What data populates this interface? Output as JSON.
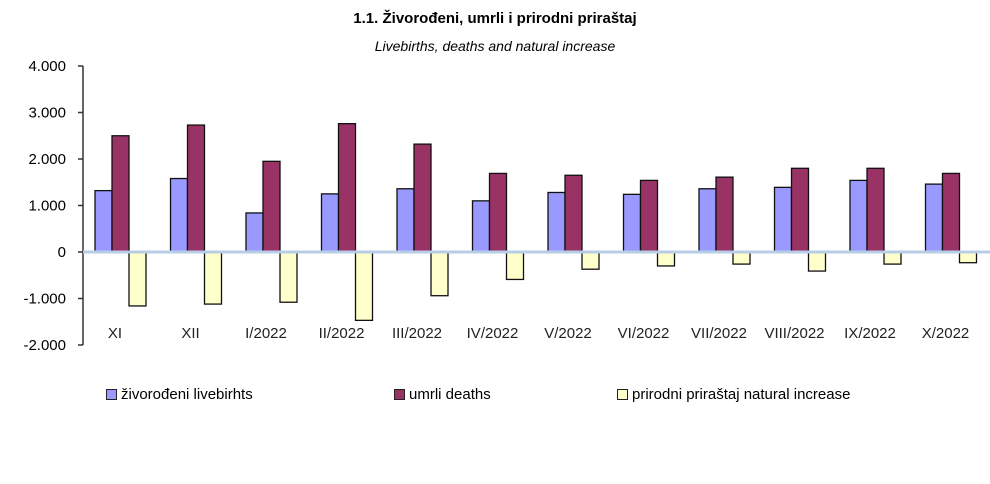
{
  "chart_data": {
    "type": "bar",
    "title": "1.1. Živorođeni, umrli  i prirodni priraštaj",
    "subtitle": "Livebirths, deaths and natural increase",
    "xlabel": "",
    "ylabel": "",
    "ylim": [
      -2000,
      4000
    ],
    "yticks": [
      4000,
      3000,
      2000,
      1000,
      0,
      -1000,
      -2000
    ],
    "ytick_labels": [
      "4.000",
      "3.000",
      "2.000",
      "1.000",
      "0",
      "-1.000",
      "-2.000"
    ],
    "categories": [
      "XI",
      "XII",
      "I/2022",
      "II/2022",
      "III/2022",
      "IV/2022",
      "V/2022",
      "VI/2022",
      "VII/2022",
      "VIII/2022",
      "IX/2022",
      "X/2022"
    ],
    "series": [
      {
        "name": "živorođeni livebirhts",
        "color": "#9999ff",
        "values": [
          1320,
          1580,
          840,
          1250,
          1360,
          1100,
          1280,
          1240,
          1360,
          1390,
          1540,
          1460
        ]
      },
      {
        "name": "umrli deaths",
        "color": "#993366",
        "values": [
          2500,
          2730,
          1950,
          2760,
          2320,
          1690,
          1650,
          1540,
          1610,
          1800,
          1800,
          1690
        ]
      },
      {
        "name": "prirodni priraštaj natural increase",
        "color": "#ffffcc",
        "values": [
          -1160,
          -1120,
          -1080,
          -1470,
          -940,
          -590,
          -370,
          -300,
          -260,
          -410,
          -260,
          -230
        ]
      }
    ],
    "legend": "bottom",
    "grid": false
  }
}
